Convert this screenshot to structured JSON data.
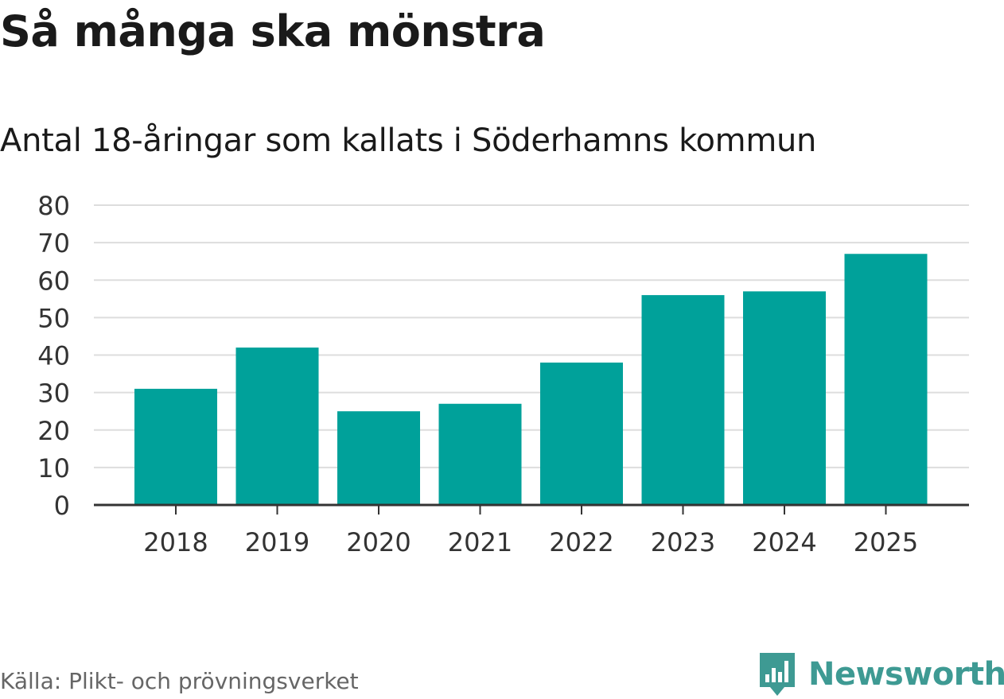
{
  "title": "Så många ska mönstra",
  "subtitle": "Antal 18-åringar som kallats i Söderhamns kommun",
  "source": "Källa: Plikt- och prövningsverket",
  "brand": {
    "name": "Newsworthy",
    "color": "#3e9a93"
  },
  "colors": {
    "bar": "#00a19a",
    "grid": "#dddddd",
    "axis": "#333333",
    "tick_text": "#333333"
  },
  "chart_data": {
    "type": "bar",
    "title": "Så många ska mönstra",
    "subtitle": "Antal 18-åringar som kallats i Söderhamns kommun",
    "xlabel": "",
    "ylabel": "",
    "categories": [
      "2018",
      "2019",
      "2020",
      "2021",
      "2022",
      "2023",
      "2024",
      "2025"
    ],
    "values": [
      31,
      42,
      25,
      27,
      38,
      56,
      57,
      67
    ],
    "ylim": [
      0,
      80
    ],
    "yticks": [
      0,
      10,
      20,
      30,
      40,
      50,
      60,
      70,
      80
    ],
    "grid": true,
    "legend": "none"
  }
}
